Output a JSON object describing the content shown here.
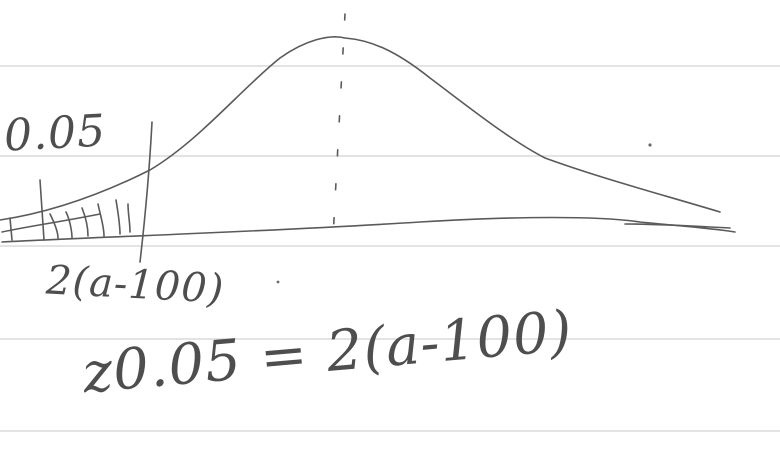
{
  "annotations": {
    "tail_area": "0.05",
    "cutoff": "2(a-100)",
    "equation": "z0.05 = 2(a-100)"
  },
  "colors": {
    "ink": "#5a5a5a",
    "rule": "#d2d2d2",
    "paper": "#ffffff"
  }
}
